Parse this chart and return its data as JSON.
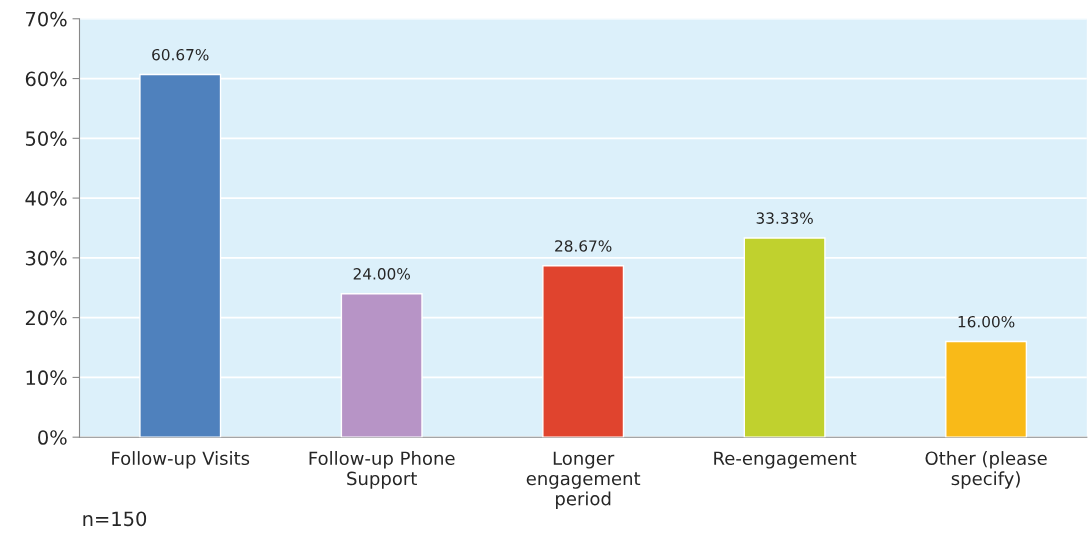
{
  "chart_data": {
    "type": "bar",
    "categories": [
      "Follow-up Visits",
      "Follow-up Phone\nSupport",
      "Longer\nengagement\nperiod",
      "Re-engagement",
      "Other (please\nspecify)"
    ],
    "values": [
      60.67,
      24.0,
      28.67,
      33.33,
      16.0
    ],
    "colors": [
      "#4f81bd",
      "#b794c6",
      "#e0442e",
      "#c0d12e",
      "#f9ba18"
    ],
    "value_labels": [
      "60.67%",
      "24.00%",
      "28.67%",
      "33.33%",
      "16.00%"
    ],
    "ylim": [
      0,
      70
    ],
    "yticks": [
      {
        "value": 0,
        "label": "0%"
      },
      {
        "value": 10,
        "label": "10%"
      },
      {
        "value": 20,
        "label": "20%"
      },
      {
        "value": 30,
        "label": "30%"
      },
      {
        "value": 40,
        "label": "40%"
      },
      {
        "value": 50,
        "label": "50%"
      },
      {
        "value": 60,
        "label": "60%"
      },
      {
        "value": 70,
        "label": "70%"
      }
    ],
    "grid": "y",
    "legend": false,
    "annotations": [
      "n=150"
    ]
  }
}
